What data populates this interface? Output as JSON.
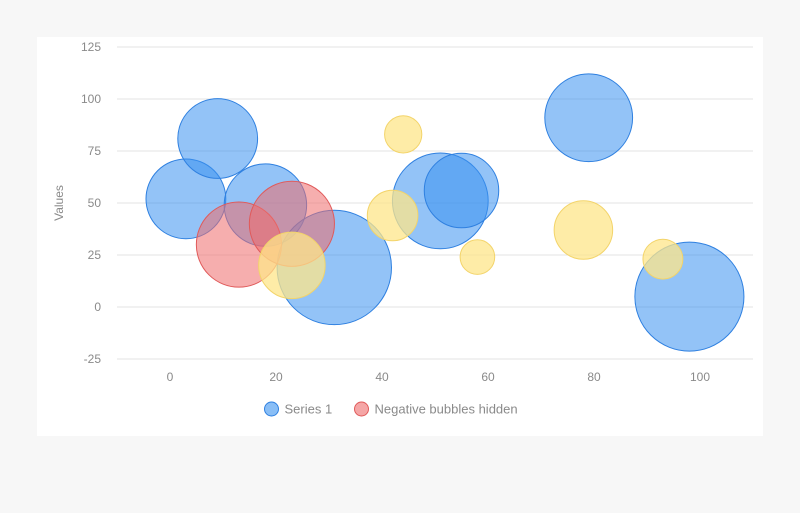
{
  "chart_data": {
    "type": "bubble",
    "title": "",
    "xlabel": "",
    "ylabel": "Values",
    "xlim": [
      -10,
      110
    ],
    "ylim": [
      -25,
      125
    ],
    "x_ticks": [
      "0",
      "20",
      "40",
      "60",
      "80",
      "100"
    ],
    "y_ticks": [
      "125",
      "100",
      "75",
      "50",
      "25",
      "0",
      "-25"
    ],
    "grid": "horizontal",
    "legend_position": "bottom",
    "series": [
      {
        "name": "Series 1",
        "color": "#3a92f0",
        "stroke": "#2f80e0",
        "points": [
          {
            "x": 3,
            "y": 52,
            "size": 30
          },
          {
            "x": 9,
            "y": 81,
            "size": 30
          },
          {
            "x": 18,
            "y": 49,
            "size": 31
          },
          {
            "x": 31,
            "y": 19,
            "size": 43
          },
          {
            "x": 51,
            "y": 51,
            "size": 36
          },
          {
            "x": 55,
            "y": 56,
            "size": 28
          },
          {
            "x": 79,
            "y": 91,
            "size": 33
          },
          {
            "x": 98,
            "y": 5,
            "size": 41
          }
        ]
      },
      {
        "name": "Negative bubbles hidden",
        "color": "#ee6b6b",
        "stroke": "#e05a5a",
        "points": [
          {
            "x": 13,
            "y": 30,
            "size": 32
          },
          {
            "x": 23,
            "y": 40,
            "size": 32
          }
        ]
      },
      {
        "color": "#fde58a",
        "stroke": "#f3d46a",
        "show_in_legend": false,
        "points": [
          {
            "x": 23,
            "y": 20,
            "size": 25
          },
          {
            "x": 42,
            "y": 44,
            "size": 19
          },
          {
            "x": 44,
            "y": 83,
            "size": 14
          },
          {
            "x": 58,
            "y": 24,
            "size": 13
          },
          {
            "x": 78,
            "y": 37,
            "size": 22
          },
          {
            "x": 93,
            "y": 23,
            "size": 15
          }
        ]
      }
    ]
  }
}
